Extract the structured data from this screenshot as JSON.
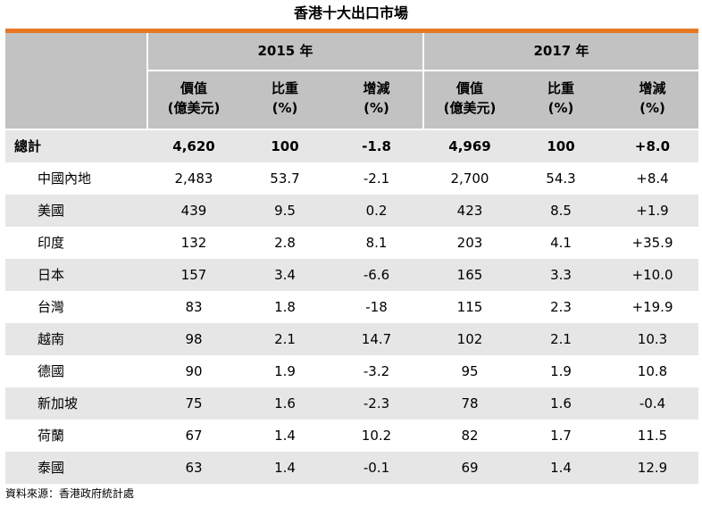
{
  "title": "香港十大出口市場",
  "years": [
    "2015 年",
    "2017 年"
  ],
  "column_headers": [
    {
      "line1": "價值",
      "line2": "(億美元)"
    },
    {
      "line1": "比重",
      "line2": "(%)"
    },
    {
      "line1": "增減",
      "line2": "(%)"
    },
    {
      "line1": "價值",
      "line2": "(億美元)"
    },
    {
      "line1": "比重",
      "line2": "(%)"
    },
    {
      "line1": "增減",
      "line2": "(%)"
    }
  ],
  "rows": [
    {
      "name": "總計",
      "values": [
        "4,620",
        "100",
        "-1.8",
        "4,969",
        "100",
        "+8.0"
      ]
    },
    {
      "name": "中國內地",
      "values": [
        "2,483",
        "53.7",
        "-2.1",
        "2,700",
        "54.3",
        "+8.4"
      ]
    },
    {
      "name": "美國",
      "values": [
        "439",
        "9.5",
        "0.2",
        "423",
        "8.5",
        "+1.9"
      ]
    },
    {
      "name": "印度",
      "values": [
        "132",
        "2.8",
        "8.1",
        "203",
        "4.1",
        "+35.9"
      ]
    },
    {
      "name": "日本",
      "values": [
        "157",
        "3.4",
        "-6.6",
        "165",
        "3.3",
        "+10.0"
      ]
    },
    {
      "name": "台灣",
      "values": [
        "83",
        "1.8",
        "-18",
        "115",
        "2.3",
        "+19.9"
      ]
    },
    {
      "name": "越南",
      "values": [
        "98",
        "2.1",
        "14.7",
        "102",
        "2.1",
        "10.3"
      ]
    },
    {
      "name": "德國",
      "values": [
        "90",
        "1.9",
        "-3.2",
        "95",
        "1.9",
        "10.8"
      ]
    },
    {
      "name": "新加坡",
      "values": [
        "75",
        "1.6",
        "-2.3",
        "78",
        "1.6",
        "-0.4"
      ]
    },
    {
      "name": "荷蘭",
      "values": [
        "67",
        "1.4",
        "10.2",
        "82",
        "1.7",
        "11.5"
      ]
    },
    {
      "name": "泰國",
      "values": [
        "63",
        "1.4",
        "-0.1",
        "69",
        "1.4",
        "12.9"
      ]
    }
  ],
  "source": "資料來源：香港政府統計處",
  "colors": {
    "accent": "#e87722",
    "header_bg": "#c2c2c2",
    "stripe": "#e6e6e6"
  }
}
